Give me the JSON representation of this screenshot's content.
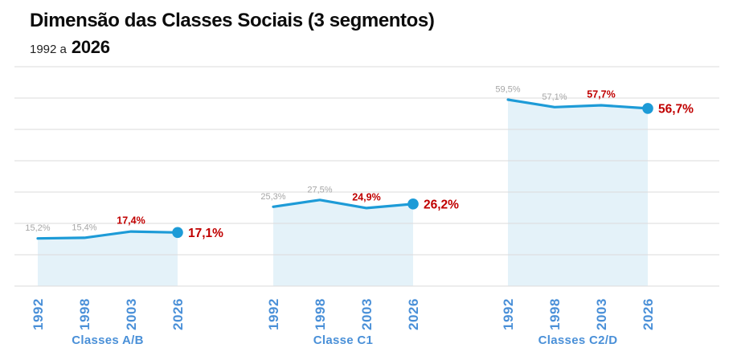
{
  "header": {
    "title": "Dimensão das Classes Sociais (3 segmentos)",
    "subtitle_prefix": "1992 a",
    "subtitle_year": "2026"
  },
  "chart_data": {
    "type": "area",
    "title": "Dimensão das Classes Sociais (3 segmentos)",
    "subtitle": "1992 a 2026",
    "categories": [
      "1992",
      "1998",
      "2003",
      "2026"
    ],
    "groups": [
      {
        "name": "Classes A/B",
        "values": [
          15.2,
          15.4,
          17.4,
          17.1
        ],
        "labels": [
          "15,2%",
          "15,4%",
          "17,4%",
          "17,1%"
        ]
      },
      {
        "name": "Classe C1",
        "values": [
          25.3,
          27.5,
          24.9,
          26.2
        ],
        "labels": [
          "25,3%",
          "27,5%",
          "24,9%",
          "26,2%"
        ]
      },
      {
        "name": "Classes C2/D",
        "values": [
          59.5,
          57.1,
          57.7,
          56.7
        ],
        "labels": [
          "59,5%",
          "57,1%",
          "57,7%",
          "56,7%"
        ]
      }
    ],
    "xlabel": "",
    "ylabel": "",
    "ylim": [
      0,
      70
    ],
    "grid_step": 10,
    "grid": true,
    "legend": false,
    "value_label_colors": [
      "#A6A6A6",
      "#A6A6A6",
      "#C00000",
      "#C00000"
    ],
    "colors": {
      "line": "#1D9BD7",
      "area_fill": "#E4F2F9",
      "grid": "#DBDBDB",
      "axis_labels": "#4A90D8",
      "highlight": "#C00000",
      "muted_label": "#A6A6A6",
      "title": "#0C0C0C"
    }
  }
}
